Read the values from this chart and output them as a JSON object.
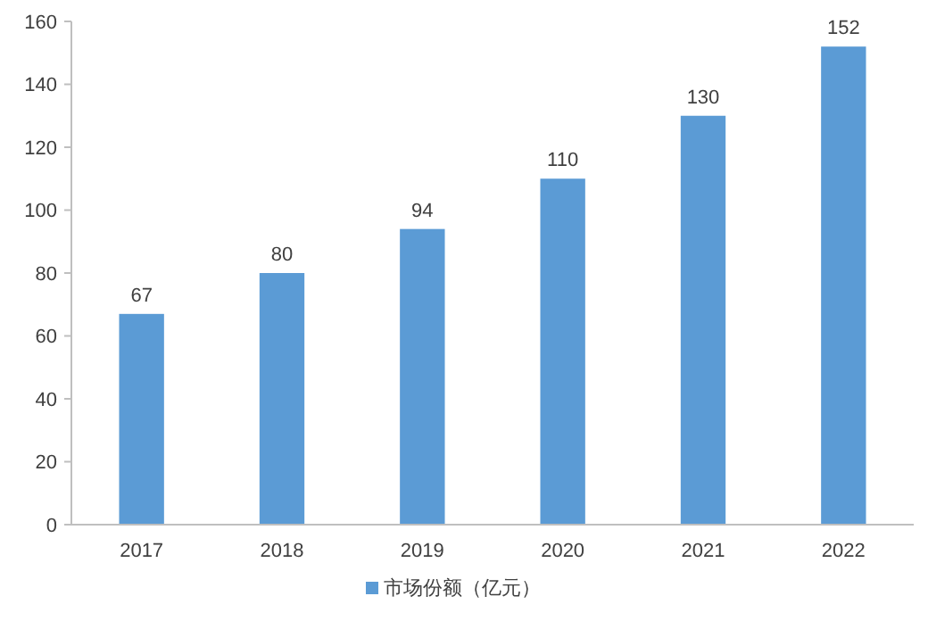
{
  "chart_data": {
    "type": "bar",
    "categories": [
      "2017",
      "2018",
      "2019",
      "2020",
      "2021",
      "2022"
    ],
    "series": [
      {
        "name": "市场份额（亿元）",
        "color": "#5b9bd5",
        "values": [
          67,
          80,
          94,
          110,
          130,
          152
        ]
      }
    ],
    "ylim": [
      0,
      160
    ],
    "yticks": [
      0,
      20,
      40,
      60,
      80,
      100,
      120,
      140,
      160
    ],
    "data_labels": true,
    "legend": "bottom"
  }
}
